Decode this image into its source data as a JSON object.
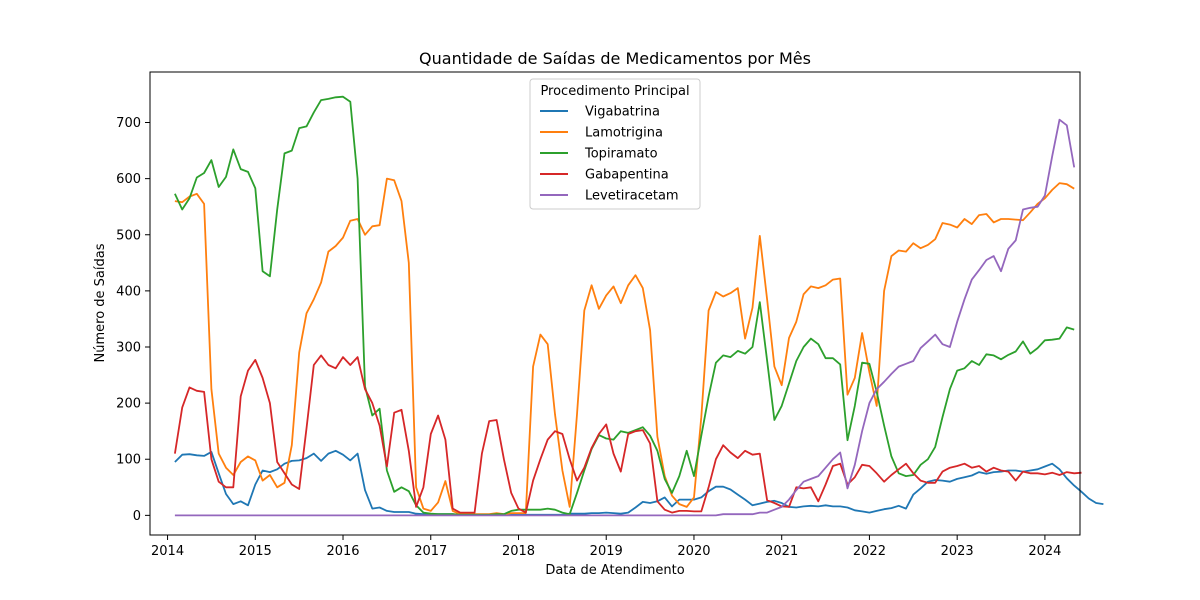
{
  "chart_data": {
    "type": "line",
    "title": "Quantidade de Saídas de Medicamentos por Mês",
    "xlabel": "Data de Atendimento",
    "ylabel": "Número de Saídas",
    "xlim": [
      2013.8,
      2024.4
    ],
    "ylim": [
      -35,
      790
    ],
    "x_ticks": [
      2014,
      2015,
      2016,
      2017,
      2018,
      2019,
      2020,
      2021,
      2022,
      2023,
      2024
    ],
    "y_ticks": [
      0,
      100,
      200,
      300,
      400,
      500,
      600,
      700
    ],
    "grid": false,
    "legend": {
      "title": "Procedimento Principal",
      "placement": "top-center"
    },
    "x_start": "2014-02",
    "x_step": "1 month",
    "series": [
      {
        "name": "Vigabatrina",
        "color": "#1f77b4",
        "values": [
          95,
          108,
          109,
          107,
          106,
          113,
          75,
          38,
          20,
          25,
          18,
          55,
          80,
          77,
          82,
          92,
          97,
          98,
          102,
          110,
          97,
          110,
          115,
          108,
          98,
          110,
          45,
          12,
          14,
          8,
          6,
          6,
          6,
          3,
          2,
          2,
          2,
          2,
          2,
          1,
          1,
          1,
          1,
          1,
          1,
          1,
          1,
          1,
          1,
          1,
          1,
          1,
          1,
          1,
          3,
          3,
          3,
          4,
          4,
          5,
          4,
          3,
          5,
          14,
          24,
          22,
          25,
          32,
          16,
          28,
          28,
          28,
          32,
          43,
          51,
          51,
          46,
          37,
          28,
          18,
          21,
          24,
          26,
          22,
          15,
          14,
          16,
          17,
          16,
          18,
          16,
          16,
          14,
          9,
          7,
          5,
          8,
          11,
          13,
          17,
          12,
          37,
          48,
          60,
          63,
          62,
          60,
          65,
          68,
          71,
          77,
          74,
          77,
          78,
          80,
          80,
          78,
          80,
          82,
          87,
          92,
          82,
          66,
          53,
          42,
          30,
          22,
          20
        ]
      },
      {
        "name": "Lamotrigina",
        "color": "#ff7f0e",
        "values": [
          560,
          558,
          568,
          573,
          555,
          225,
          110,
          85,
          72,
          95,
          105,
          98,
          62,
          72,
          50,
          58,
          125,
          290,
          360,
          385,
          415,
          470,
          480,
          495,
          525,
          528,
          500,
          515,
          517,
          600,
          597,
          560,
          450,
          50,
          12,
          8,
          23,
          61,
          8,
          2,
          2,
          2,
          2,
          2,
          4,
          2,
          4,
          4,
          4,
          265,
          322,
          305,
          180,
          80,
          15,
          180,
          365,
          410,
          368,
          392,
          408,
          378,
          410,
          428,
          405,
          330,
          140,
          70,
          35,
          20,
          15,
          32,
          175,
          365,
          398,
          390,
          396,
          405,
          315,
          370,
          498,
          385,
          265,
          232,
          316,
          345,
          394,
          408,
          405,
          410,
          420,
          422,
          215,
          245,
          325,
          255,
          195,
          400,
          462,
          472,
          470,
          485,
          476,
          482,
          492,
          521,
          518,
          513,
          528,
          519,
          535,
          537,
          522,
          528,
          528,
          527,
          526,
          540,
          555,
          565,
          580,
          592,
          590,
          582
        ]
      },
      {
        "name": "Topiramato",
        "color": "#2ca02c",
        "values": [
          573,
          545,
          565,
          602,
          610,
          633,
          585,
          603,
          652,
          617,
          612,
          583,
          435,
          426,
          545,
          645,
          650,
          690,
          693,
          718,
          740,
          742,
          745,
          746,
          737,
          600,
          230,
          178,
          190,
          80,
          42,
          50,
          43,
          18,
          5,
          3,
          2,
          2,
          2,
          1,
          1,
          1,
          1,
          1,
          2,
          2,
          8,
          10,
          10,
          10,
          10,
          12,
          10,
          5,
          2,
          40,
          80,
          118,
          143,
          137,
          135,
          150,
          147,
          152,
          157,
          142,
          115,
          65,
          40,
          70,
          115,
          70,
          142,
          212,
          272,
          285,
          282,
          293,
          288,
          300,
          380,
          276,
          170,
          195,
          235,
          275,
          300,
          315,
          305,
          280,
          280,
          269,
          134,
          195,
          272,
          270,
          220,
          160,
          105,
          75,
          70,
          72,
          90,
          100,
          122,
          175,
          225,
          258,
          262,
          275,
          268,
          287,
          285,
          278,
          286,
          292,
          310,
          288,
          298,
          312,
          313,
          315,
          335,
          331
        ]
      },
      {
        "name": "Gabapentina",
        "color": "#d62728",
        "values": [
          110,
          192,
          228,
          222,
          220,
          100,
          60,
          50,
          50,
          212,
          258,
          277,
          245,
          200,
          95,
          75,
          55,
          47,
          155,
          268,
          285,
          268,
          262,
          282,
          268,
          282,
          225,
          200,
          160,
          87,
          183,
          188,
          115,
          15,
          50,
          145,
          178,
          135,
          12,
          5,
          5,
          5,
          110,
          168,
          170,
          100,
          40,
          12,
          5,
          62,
          100,
          135,
          150,
          145,
          100,
          62,
          85,
          120,
          145,
          162,
          110,
          78,
          145,
          150,
          152,
          128,
          25,
          10,
          5,
          8,
          8,
          7,
          7,
          50,
          100,
          125,
          112,
          102,
          115,
          108,
          110,
          27,
          22,
          16,
          15,
          50,
          48,
          50,
          25,
          55,
          88,
          92,
          55,
          68,
          90,
          88,
          75,
          60,
          72,
          82,
          92,
          75,
          62,
          58,
          58,
          78,
          85,
          88,
          92,
          85,
          88,
          78,
          85,
          80,
          78,
          62,
          78,
          75,
          75,
          73,
          76,
          72,
          77,
          75,
          76
        ]
      },
      {
        "name": "Levetiracetam",
        "color": "#9467bd",
        "values": [
          0,
          0,
          0,
          0,
          0,
          0,
          0,
          0,
          0,
          0,
          0,
          0,
          0,
          0,
          0,
          0,
          0,
          0,
          0,
          0,
          0,
          0,
          0,
          0,
          0,
          0,
          0,
          0,
          0,
          0,
          0,
          0,
          0,
          0,
          0,
          0,
          0,
          0,
          0,
          0,
          0,
          0,
          0,
          0,
          0,
          0,
          0,
          0,
          0,
          0,
          0,
          0,
          0,
          0,
          0,
          0,
          0,
          0,
          0,
          0,
          0,
          0,
          0,
          0,
          0,
          0,
          0,
          0,
          0,
          0,
          0,
          0,
          0,
          0,
          0,
          2,
          2,
          2,
          2,
          2,
          5,
          5,
          10,
          15,
          28,
          45,
          60,
          65,
          70,
          85,
          100,
          112,
          48,
          90,
          150,
          200,
          225,
          238,
          252,
          265,
          270,
          275,
          298,
          310,
          322,
          305,
          300,
          345,
          385,
          420,
          437,
          455,
          462,
          435,
          475,
          490,
          545,
          548,
          550,
          570,
          640,
          705,
          695,
          620
        ]
      }
    ]
  }
}
